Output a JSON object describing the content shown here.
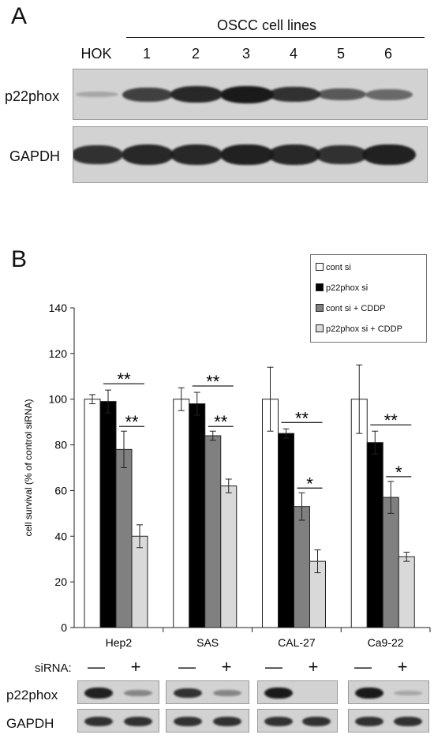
{
  "panel_a": {
    "letter": "A",
    "group_label": "OSCC cell lines",
    "lanes": [
      "HOK",
      "1",
      "2",
      "3",
      "4",
      "5",
      "6"
    ],
    "row_labels": [
      "p22phox",
      "GAPDH"
    ],
    "p22phox_relative_intensity": [
      0.1,
      0.75,
      0.9,
      1.0,
      0.85,
      0.6,
      0.5
    ],
    "gapdh_relative_intensity": [
      0.85,
      0.9,
      0.9,
      0.95,
      0.9,
      0.85,
      0.95
    ]
  },
  "panel_b": {
    "letter": "B",
    "siRNA_label": "siRNA:",
    "siRNA_conditions": [
      "—",
      "+",
      "—",
      "+",
      "—",
      "+",
      "—",
      "+"
    ],
    "blot_rows": [
      "p22phox",
      "GAPDH"
    ],
    "colors": {
      "cont_si": "#ffffff",
      "p22phox_si": "#000000",
      "cont_si_cddp": "#808080",
      "p22phox_si_cddp": "#d9d9d9"
    }
  },
  "chart_data": {
    "type": "bar",
    "categories": [
      "Hep2",
      "SAS",
      "CAL-27",
      "Ca9-22"
    ],
    "ylabel": "cell survival (% of control siRNA)",
    "xlabel": "",
    "ylim": [
      0,
      140
    ],
    "yticks": [
      0,
      20,
      40,
      60,
      80,
      100,
      120,
      140
    ],
    "grid": false,
    "legend_position": "top-right",
    "series": [
      {
        "name": "cont si",
        "values": [
          100,
          100,
          100,
          100
        ],
        "errors": [
          2,
          5,
          14,
          15
        ]
      },
      {
        "name": "p22phox si",
        "values": [
          99,
          98,
          85,
          81
        ],
        "errors": [
          5,
          5,
          2,
          5
        ]
      },
      {
        "name": "cont si + CDDP",
        "values": [
          78,
          84,
          53,
          57
        ],
        "errors": [
          8,
          2,
          6,
          7
        ]
      },
      {
        "name": "p22phox si + CDDP",
        "values": [
          40,
          62,
          29,
          31
        ],
        "errors": [
          5,
          3,
          5,
          2
        ]
      }
    ],
    "annotations": [
      {
        "category": "Hep2",
        "text": "**",
        "between": [
          "p22phox si",
          "p22phox si + CDDP"
        ]
      },
      {
        "category": "Hep2",
        "text": "**",
        "between": [
          "cont si + CDDP",
          "p22phox si + CDDP"
        ]
      },
      {
        "category": "SAS",
        "text": "**",
        "between": [
          "p22phox si",
          "p22phox si + CDDP"
        ]
      },
      {
        "category": "SAS",
        "text": "**",
        "between": [
          "cont si + CDDP",
          "p22phox si + CDDP"
        ]
      },
      {
        "category": "CAL-27",
        "text": "**",
        "between": [
          "p22phox si",
          "p22phox si + CDDP"
        ]
      },
      {
        "category": "CAL-27",
        "text": "*",
        "between": [
          "cont si + CDDP",
          "p22phox si + CDDP"
        ]
      },
      {
        "category": "Ca9-22",
        "text": "**",
        "between": [
          "p22phox si",
          "p22phox si + CDDP"
        ]
      },
      {
        "category": "Ca9-22",
        "text": "*",
        "between": [
          "cont si + CDDP",
          "p22phox si + CDDP"
        ]
      }
    ]
  }
}
